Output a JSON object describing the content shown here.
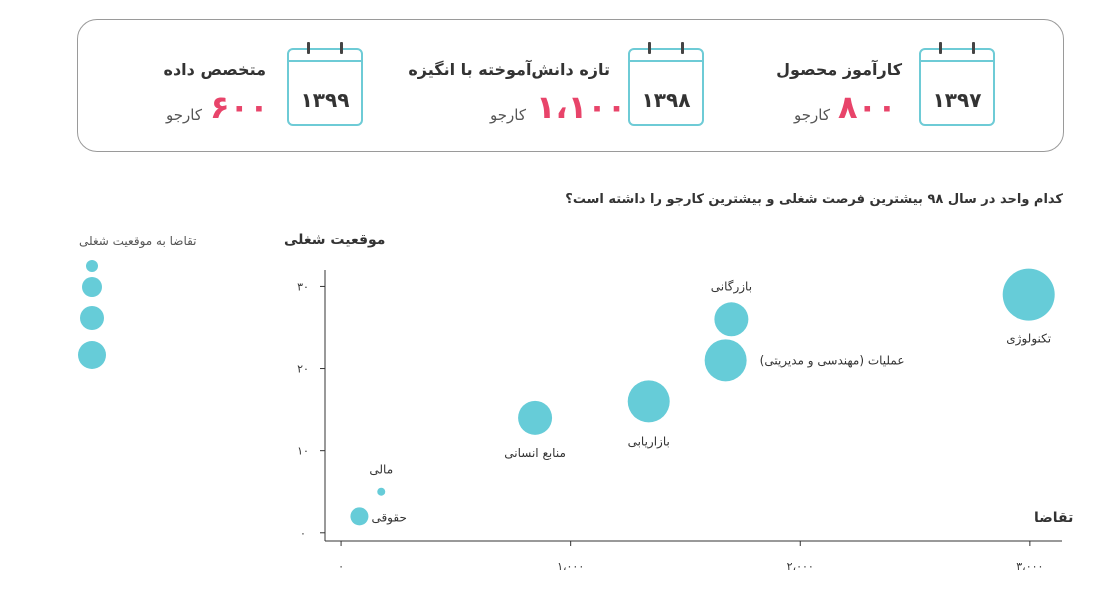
{
  "stats": [
    {
      "year": "۱۳۹۷",
      "title": "کارآموز محصول",
      "value": "۸۰۰",
      "unit": "کارجو"
    },
    {
      "year": "۱۳۹۸",
      "title": "تازه دانش‌آموخته با انگیزه",
      "value": "۱،۱۰۰",
      "unit": "کارجو"
    },
    {
      "year": "۱۳۹۹",
      "title": "متخصص داده",
      "value": "۶۰۰",
      "unit": "کارجو"
    }
  ],
  "colors": {
    "accent": "#66ccd8",
    "highlight": "#e8446a",
    "calendar": "#6ecbd6"
  },
  "question": "کدام واحد در سال ۹۸ بیشترین فرصت شغلی و بیشترین کارجو را داشته است؟",
  "legend": {
    "title": "تقاضا به موقعیت شغلی",
    "levels": 4
  },
  "chart_data": {
    "type": "scatter",
    "title": "",
    "xlabel": "تقاضا",
    "ylabel": "موقعیت شغلی",
    "xlim": [
      -70,
      3140
    ],
    "ylim": [
      -1,
      32
    ],
    "x_ticks": [
      0,
      1000,
      2000,
      3000
    ],
    "x_tick_labels": [
      "۰",
      "۱،۰۰۰",
      "۲،۰۰۰",
      "۳،۰۰۰"
    ],
    "y_ticks": [
      0,
      10,
      20,
      30
    ],
    "y_tick_labels": [
      "۰",
      "۱۰",
      "۲۰",
      "۳۰"
    ],
    "grid": false,
    "points": [
      {
        "label": "حقوقی",
        "x": 80,
        "y": 2,
        "size": 2
      },
      {
        "label": "مالی",
        "x": 175,
        "y": 5,
        "size": 1
      },
      {
        "label": "منابع انسانی",
        "x": 845,
        "y": 14,
        "size": 3
      },
      {
        "label": "بازاریابی",
        "x": 1340,
        "y": 16,
        "size": 4
      },
      {
        "label": "عملیات (مهندسی و مدیریتی)",
        "x": 1675,
        "y": 21,
        "size": 4
      },
      {
        "label": "بازرگانی",
        "x": 1700,
        "y": 26,
        "size": 3
      },
      {
        "label": "تکنولوژی",
        "x": 2995,
        "y": 29,
        "size": 5
      }
    ]
  }
}
